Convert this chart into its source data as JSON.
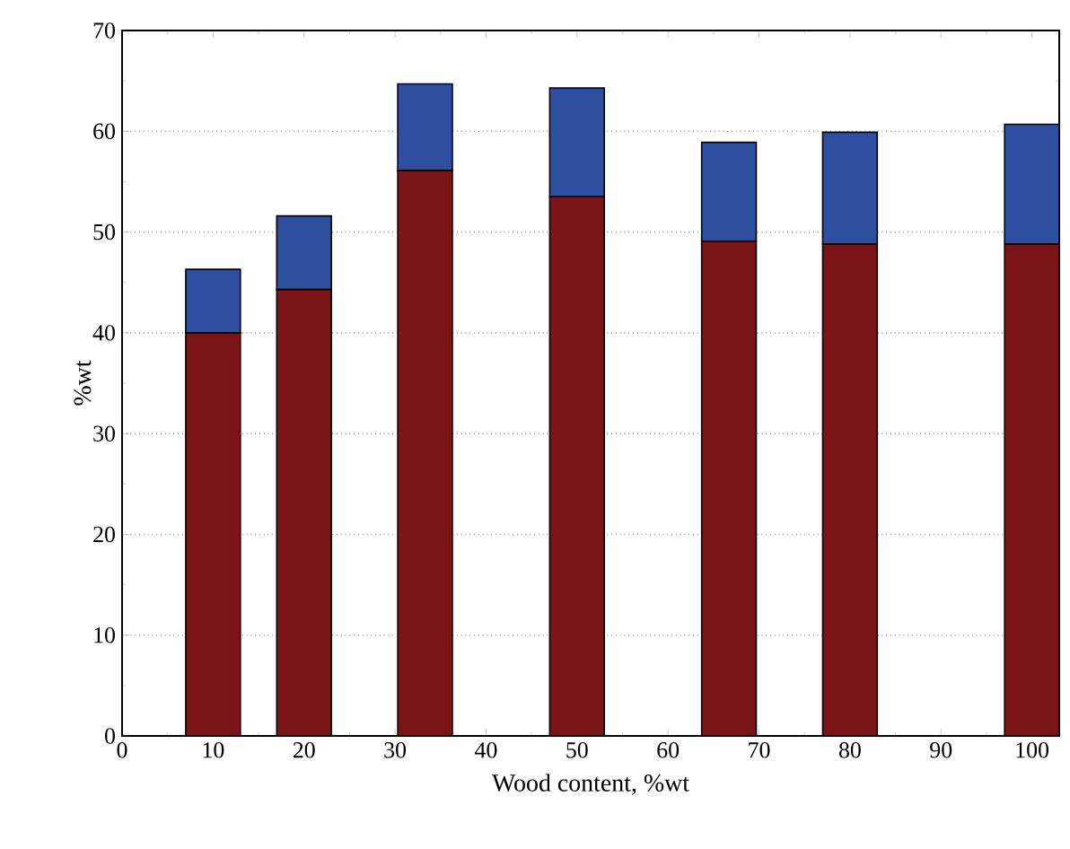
{
  "chart_data": {
    "type": "bar",
    "stacked": true,
    "xlabel": "Wood content, %wt",
    "ylabel": "%wt",
    "x": [
      10,
      20,
      33.3,
      50,
      66.7,
      80,
      100
    ],
    "series": [
      {
        "color": "#7b1416",
        "values": [
          40.0,
          44.3,
          56.1,
          53.5,
          49.1,
          48.8,
          48.8
        ]
      },
      {
        "color": "#2e4fa0",
        "values": [
          6.3,
          7.3,
          8.6,
          10.8,
          9.8,
          11.1,
          11.9
        ]
      }
    ],
    "xlim": [
      0,
      103
    ],
    "xticks": [
      0,
      10,
      20,
      30,
      40,
      50,
      60,
      70,
      80,
      90,
      100
    ],
    "ylim": [
      0,
      70
    ],
    "yticks": [
      0,
      10,
      20,
      30,
      40,
      50,
      60,
      70
    ],
    "grid": "y"
  }
}
